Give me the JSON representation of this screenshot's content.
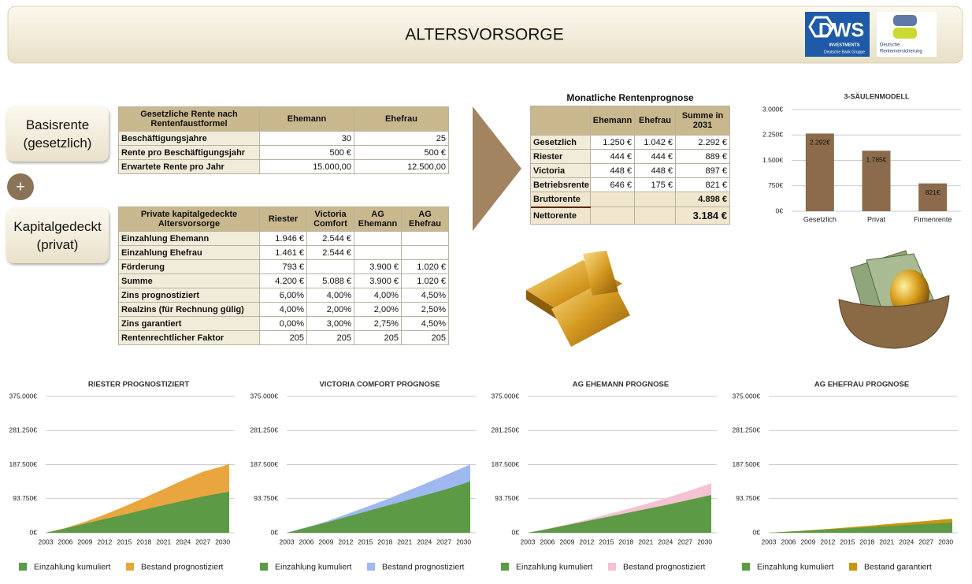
{
  "header": {
    "title": "ALTERSVORSORGE",
    "logo_dws": {
      "name": "DWS",
      "line1": "INVESTMENTS",
      "line2": "Deutsche Bank Gruppe"
    },
    "logo_drv": {
      "line1": "Deutsche",
      "line2": "Rentenversicherung"
    }
  },
  "buttons": {
    "basis": [
      "Basisrente",
      "(gesetzlich)"
    ],
    "plus": "+",
    "kapital": [
      "Kapitalgedeckt",
      "(privat)"
    ]
  },
  "tables": [
    {
      "headers": [
        "Gesetzliche Rente nach Rentenfaustformel",
        "Ehemann",
        "Ehefrau"
      ],
      "rows": [
        [
          "Beschäftigungsjahre",
          "30",
          "25"
        ],
        [
          "Rente pro Beschäftigungsjahr",
          "500 €",
          "500 €"
        ],
        [
          "Erwartete Rente pro Jahr",
          "15.000,00",
          "12.500,00"
        ]
      ]
    },
    {
      "headers": [
        "Private kapitalgedeckte Altersvorsorge",
        "Riester",
        "Victoria Comfort",
        "AG Ehemann",
        "AG Ehefrau"
      ],
      "rows": [
        [
          "Einzahlung Ehemann",
          "1.946 €",
          "2.544 €",
          null,
          null
        ],
        [
          "Einzahlung Ehefrau",
          "1.461 €",
          "2.544 €",
          null,
          null
        ],
        [
          "Förderung",
          "793 €",
          null,
          "3.900 €",
          "1.020 €"
        ],
        [
          "Summe",
          "4.200 €",
          "5.088 €",
          "3.900 €",
          "1.020 €"
        ],
        [
          "Zins prognostiziert",
          "6,00%",
          "4,00%",
          "4,00%",
          "4,50%"
        ],
        [
          "Realzins (für Rechnung gülig)",
          "4,00%",
          "2,00%",
          "2,00%",
          "2,50%"
        ],
        [
          "Zins garantiert",
          "0,00%",
          "3,00%",
          "2,75%",
          "4,50%"
        ],
        [
          "Rentenrechtlicher Faktor",
          "205",
          "205",
          "205",
          "205"
        ]
      ]
    },
    {
      "title": "Monatliche Rentenprognose",
      "headers": [
        null,
        "Ehemann",
        "Ehefrau",
        "Summe in 2031"
      ],
      "rows": [
        [
          "Gesetzlich",
          "1.250 €",
          "1.042 €",
          "2.292 €"
        ],
        [
          "Riester",
          "444 €",
          "444 €",
          "889 €"
        ],
        [
          "Victoria",
          "448 €",
          "448 €",
          "897 €"
        ],
        [
          "Betriebsrente",
          "646 €",
          "175 €",
          "821 €"
        ],
        [
          "Bruttorente",
          null,
          null,
          "4.898 €"
        ],
        [
          "Nettorente",
          null,
          null,
          "3.184 €"
        ]
      ]
    }
  ],
  "chart_data": [
    {
      "type": "bar",
      "title": "3-SÄULENMODELL",
      "categories": [
        "Gesetzlich",
        "Privat",
        "Firmenrente"
      ],
      "values": [
        2292,
        1785,
        821
      ],
      "value_labels": [
        "2.292€",
        "1.785€",
        "821€"
      ],
      "color": "#8b6b4c",
      "ylim": [
        0,
        3000
      ],
      "yticks": [
        {
          "value": 0,
          "label": "0€"
        },
        {
          "value": 750,
          "label": "750€"
        },
        {
          "value": 1500,
          "label": "1.500€"
        },
        {
          "value": 2250,
          "label": "2.250€"
        },
        {
          "value": 3000,
          "label": "3.000€"
        }
      ],
      "grid": true
    },
    {
      "type": "area",
      "title": "RIESTER PROGNOSTIZIERT",
      "x": [
        2003,
        2006,
        2009,
        2012,
        2015,
        2018,
        2021,
        2024,
        2027,
        2030,
        2031
      ],
      "series": [
        {
          "name": "Einzahlung kumuliert",
          "color": "#5c9a46",
          "values": [
            0,
            12000,
            25000,
            38000,
            50000,
            63000,
            76000,
            88000,
            100000,
            110000,
            113000
          ]
        },
        {
          "name": "Bestand prognostiziert",
          "color": "#e9a63e",
          "values": [
            0,
            13000,
            30000,
            50000,
            72000,
            96000,
            120000,
            145000,
            168000,
            183000,
            190000
          ]
        }
      ],
      "xlim": [
        2003,
        2031
      ],
      "xticks": [
        2003,
        2006,
        2009,
        2012,
        2015,
        2018,
        2021,
        2024,
        2027,
        2030
      ],
      "ylim": [
        0,
        375000
      ],
      "yticks": [
        {
          "value": 0,
          "label": "0€"
        },
        {
          "value": 93750,
          "label": "93.750€"
        },
        {
          "value": 187500,
          "label": "187.500€"
        },
        {
          "value": 281250,
          "label": "281.250€"
        },
        {
          "value": 375000,
          "label": "375.000€"
        }
      ],
      "grid": true
    },
    {
      "type": "area",
      "title": "VICTORIA COMFORT PROGNOSE",
      "x": [
        2003,
        2006,
        2009,
        2012,
        2015,
        2018,
        2021,
        2024,
        2027,
        2030,
        2031
      ],
      "series": [
        {
          "name": "Einzahlung kumuliert",
          "color": "#5c9a46",
          "values": [
            0,
            14000,
            28000,
            43000,
            58000,
            73000,
            88000,
            103000,
            118000,
            135000,
            142000
          ]
        },
        {
          "name": "Bestand prognostiziert",
          "color": "#9fb8f0",
          "values": [
            0,
            15000,
            31000,
            50000,
            70000,
            90000,
            112000,
            134000,
            157000,
            180000,
            188000
          ]
        }
      ],
      "xlim": [
        2003,
        2031
      ],
      "xticks": [
        2003,
        2006,
        2009,
        2012,
        2015,
        2018,
        2021,
        2024,
        2027,
        2030
      ],
      "ylim": [
        0,
        375000
      ],
      "yticks": [
        {
          "value": 0,
          "label": "0€"
        },
        {
          "value": 93750,
          "label": "93.750€"
        },
        {
          "value": 187500,
          "label": "187.500€"
        },
        {
          "value": 281250,
          "label": "281.250€"
        },
        {
          "value": 375000,
          "label": "375.000€"
        }
      ],
      "grid": true
    },
    {
      "type": "area",
      "title": "AG EHEMANN PROGNOSE",
      "x": [
        2003,
        2006,
        2009,
        2012,
        2015,
        2018,
        2021,
        2024,
        2027,
        2030,
        2031
      ],
      "series": [
        {
          "name": "Einzahlung kumuliert",
          "color": "#5c9a46",
          "values": [
            0,
            10000,
            21000,
            32000,
            43000,
            54000,
            65000,
            76000,
            88000,
            100000,
            104000
          ]
        },
        {
          "name": "Bestand prognostiziert",
          "color": "#f5c2d1",
          "values": [
            0,
            11000,
            23000,
            36000,
            50000,
            64000,
            79000,
            95000,
            112000,
            130000,
            136000
          ]
        }
      ],
      "xlim": [
        2003,
        2031
      ],
      "xticks": [
        2003,
        2006,
        2009,
        2012,
        2015,
        2018,
        2021,
        2024,
        2027,
        2030
      ],
      "ylim": [
        0,
        375000
      ],
      "yticks": [
        {
          "value": 0,
          "label": "0€"
        },
        {
          "value": 93750,
          "label": "93.750€"
        },
        {
          "value": 187500,
          "label": "187.500€"
        },
        {
          "value": 281250,
          "label": "281.250€"
        },
        {
          "value": 375000,
          "label": "375.000€"
        }
      ],
      "grid": true
    },
    {
      "type": "area",
      "title": "AG EHEFRAU PROGNOSE",
      "x": [
        2003,
        2006,
        2009,
        2012,
        2015,
        2018,
        2021,
        2024,
        2027,
        2030,
        2031
      ],
      "series": [
        {
          "name": "Einzahlung kumuliert",
          "color": "#5c9a46",
          "values": [
            0,
            3000,
            6000,
            9000,
            12000,
            15000,
            18000,
            21000,
            24000,
            27000,
            28000
          ]
        },
        {
          "name": "Bestand garantiert",
          "color": "#c8960c",
          "values": [
            0,
            3200,
            6800,
            10500,
            14500,
            19000,
            23500,
            28000,
            32500,
            37000,
            38500
          ]
        }
      ],
      "xlim": [
        2003,
        2031
      ],
      "xticks": [
        2003,
        2006,
        2009,
        2012,
        2015,
        2018,
        2021,
        2024,
        2027,
        2030
      ],
      "ylim": [
        0,
        375000
      ],
      "yticks": [
        {
          "value": 0,
          "label": "0€"
        },
        {
          "value": 93750,
          "label": "93.750€"
        },
        {
          "value": 187500,
          "label": "187.500€"
        },
        {
          "value": 281250,
          "label": "281.250€"
        },
        {
          "value": 375000,
          "label": "375.000€"
        }
      ],
      "grid": true
    }
  ]
}
